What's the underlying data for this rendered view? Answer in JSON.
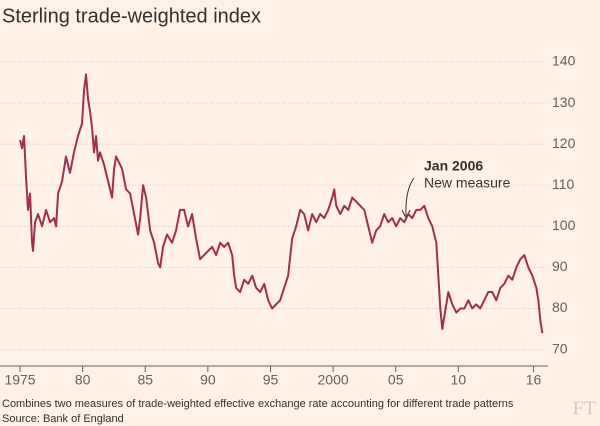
{
  "chart_data": {
    "type": "line",
    "title": "Sterling trade-weighted index",
    "annotation": {
      "title": "Jan 2006",
      "text": "New measure"
    },
    "footnote": "Combines two measures of trade-weighted effective exchange rate accounting for different trade patterns",
    "source": "Source: Bank of England",
    "logo": "FT",
    "color": "#9e2f50",
    "grid": true,
    "x": [
      1975.0,
      1975.16,
      1975.32,
      1975.48,
      1975.64,
      1975.8,
      1975.96,
      1976.04,
      1976.2,
      1976.44,
      1976.76,
      1977.08,
      1977.4,
      1977.72,
      1977.88,
      1978.04,
      1978.36,
      1978.67,
      1978.99,
      1979.31,
      1979.63,
      1979.95,
      1980.11,
      1980.27,
      1980.43,
      1980.59,
      1980.75,
      1980.91,
      1981.07,
      1981.23,
      1981.39,
      1981.71,
      1982.03,
      1982.35,
      1982.51,
      1982.67,
      1982.83,
      1983.15,
      1983.47,
      1983.79,
      1984.11,
      1984.43,
      1984.59,
      1984.83,
      1985.07,
      1985.39,
      1985.71,
      1986.03,
      1986.19,
      1986.42,
      1986.74,
      1987.14,
      1987.46,
      1987.78,
      1988.1,
      1988.42,
      1988.74,
      1989.06,
      1989.38,
      1989.7,
      1990.02,
      1990.34,
      1990.66,
      1990.98,
      1991.3,
      1991.62,
      1991.94,
      1992.1,
      1992.26,
      1992.58,
      1992.9,
      1993.22,
      1993.54,
      1993.86,
      1994.18,
      1994.5,
      1994.82,
      1995.13,
      1995.45,
      1995.77,
      1996.09,
      1996.41,
      1996.73,
      1997.05,
      1997.37,
      1997.69,
      1998.01,
      1998.33,
      1998.65,
      1998.97,
      1999.29,
      1999.61,
      1999.93,
      2000.09,
      2000.25,
      2000.57,
      2000.89,
      2001.21,
      2001.53,
      2001.85,
      2002.17,
      2002.49,
      2002.81,
      2003.12,
      2003.44,
      2003.76,
      2004.08,
      2004.4,
      2004.72,
      2005.04,
      2005.36,
      2005.68,
      2006.0,
      2006.32,
      2006.64,
      2006.96,
      2007.28,
      2007.6,
      2007.92,
      2008.24,
      2008.4,
      2008.56,
      2008.72,
      2008.88,
      2009.2,
      2009.52,
      2009.84,
      2010.16,
      2010.48,
      2010.8,
      2011.11,
      2011.43,
      2011.75,
      2012.07,
      2012.39,
      2012.71,
      2013.03,
      2013.35,
      2013.67,
      2013.99,
      2014.31,
      2014.63,
      2014.95,
      2015.27,
      2015.59,
      2015.91,
      2016.23,
      2016.39,
      2016.55,
      2016.71
    ],
    "values": [
      121,
      119,
      122,
      112,
      104,
      108,
      96,
      94,
      101,
      103,
      100,
      104,
      101,
      102,
      100,
      108,
      111,
      117,
      113,
      118,
      122,
      125,
      133,
      137,
      131,
      128,
      124,
      118,
      122,
      116,
      118,
      115,
      111,
      107,
      114,
      117,
      116,
      114,
      109,
      108,
      103,
      98,
      102,
      110,
      107,
      99,
      96,
      91,
      90,
      95,
      98,
      96,
      99,
      104,
      104,
      100,
      103,
      97,
      92,
      93,
      94,
      95,
      93,
      96,
      95,
      96,
      93,
      88,
      85,
      84,
      87,
      86,
      88,
      85,
      84,
      86,
      82,
      80,
      81,
      82,
      85,
      88,
      97,
      100,
      104,
      103,
      99,
      103,
      101,
      103,
      102,
      104,
      107,
      109,
      105,
      103,
      105,
      104,
      107,
      106,
      105,
      104,
      100,
      96,
      99,
      100,
      103,
      101,
      102,
      100,
      102,
      101,
      103,
      102,
      104,
      104,
      105,
      102,
      100,
      96,
      88,
      80,
      75,
      78,
      84,
      81,
      79,
      80,
      80,
      82,
      80,
      81,
      80,
      82,
      84,
      84,
      82,
      85,
      86,
      88,
      87,
      90,
      92,
      93,
      90,
      88,
      85,
      82,
      77,
      74
    ],
    "xlim": [
      1974.2,
      2017.0
    ],
    "xticks": [
      1975,
      {
        "value": 1980,
        "label": "80"
      },
      {
        "value": 1985,
        "label": "85"
      },
      {
        "value": 1990,
        "label": "90"
      },
      {
        "value": 1995,
        "label": "95"
      },
      2000,
      {
        "value": 2005,
        "label": "05"
      },
      {
        "value": 2010,
        "label": "10"
      },
      {
        "value": 2016,
        "label": "16"
      }
    ],
    "ylim": [
      66,
      143
    ],
    "yticks": [
      70,
      80,
      90,
      100,
      110,
      120,
      130,
      140
    ]
  }
}
